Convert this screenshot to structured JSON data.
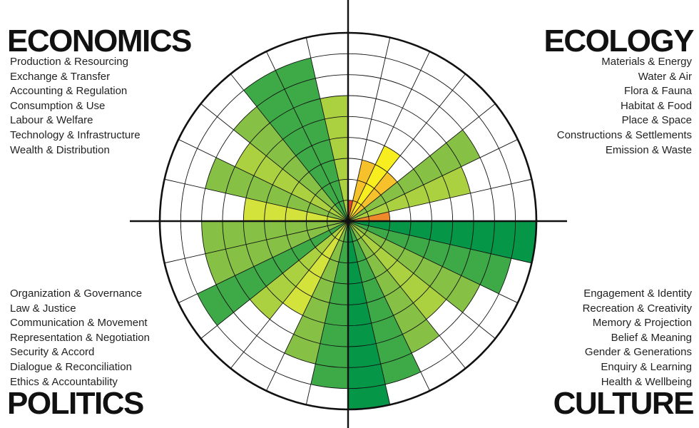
{
  "domains": {
    "economics": {
      "title": "ECONOMICS",
      "items": [
        "Production & Resourcing",
        "Exchange & Transfer",
        "Accounting & Regulation",
        "Consumption & Use",
        "Labour & Welfare",
        "Technology & Infrastructure",
        "Wealth & Distribution"
      ]
    },
    "ecology": {
      "title": "ECOLOGY",
      "items": [
        "Materials & Energy",
        "Water & Air",
        "Flora & Fauna",
        "Habitat & Food",
        "Place & Space",
        "Constructions & Settlements",
        "Emission & Waste"
      ]
    },
    "politics": {
      "title": "POLITICS",
      "items": [
        "Organization & Governance",
        "Law & Justice",
        "Communication & Movement",
        "Representation & Negotiation",
        "Security & Accord",
        "Dialogue & Reconciliation",
        "Ethics & Accountability"
      ]
    },
    "culture": {
      "title": "CULTURE",
      "items": [
        "Engagement & Identity",
        "Recreation & Creativity",
        "Memory & Projection",
        "Belief & Meaning",
        "Gender & Generations",
        "Enquiry & Learning",
        "Health & Wellbeing"
      ]
    }
  },
  "chart_data": {
    "type": "radial-bar",
    "scale_levels": 9,
    "colors": {
      "1": "#e24a2b",
      "2": "#ef8a2c",
      "3": "#f6c12a",
      "4": "#f8ed1f",
      "5": "#d4e23c",
      "6": "#acd140",
      "7": "#86c145",
      "8": "#3eaa47",
      "9": "#059647"
    },
    "segments": [
      {
        "domain": "Ecology",
        "subdomain": "Materials & Energy",
        "level": 1
      },
      {
        "domain": "Ecology",
        "subdomain": "Water & Air",
        "level": 3
      },
      {
        "domain": "Ecology",
        "subdomain": "Flora & Fauna",
        "level": 4
      },
      {
        "domain": "Ecology",
        "subdomain": "Habitat & Food",
        "level": 3
      },
      {
        "domain": "Ecology",
        "subdomain": "Place & Space",
        "level": 7
      },
      {
        "domain": "Ecology",
        "subdomain": "Constructions & Settlements",
        "level": 6
      },
      {
        "domain": "Ecology",
        "subdomain": "Emission & Waste",
        "level": 2
      },
      {
        "domain": "Culture",
        "subdomain": "Engagement & Identity",
        "level": 9
      },
      {
        "domain": "Culture",
        "subdomain": "Recreation & Creativity",
        "level": 8
      },
      {
        "domain": "Culture",
        "subdomain": "Memory & Projection",
        "level": 7
      },
      {
        "domain": "Culture",
        "subdomain": "Belief & Meaning",
        "level": 6
      },
      {
        "domain": "Culture",
        "subdomain": "Gender & Generations",
        "level": 7
      },
      {
        "domain": "Culture",
        "subdomain": "Enquiry & Learning",
        "level": 8
      },
      {
        "domain": "Culture",
        "subdomain": "Health & Wellbeing",
        "level": 9
      },
      {
        "domain": "Politics",
        "subdomain": "Ethics & Accountability",
        "level": 8
      },
      {
        "domain": "Politics",
        "subdomain": "Dialogue & Reconciliation",
        "level": 7
      },
      {
        "domain": "Politics",
        "subdomain": "Security & Accord",
        "level": 5
      },
      {
        "domain": "Politics",
        "subdomain": "Representation & Negotiation",
        "level": 6
      },
      {
        "domain": "Politics",
        "subdomain": "Communication & Movement",
        "level": 8
      },
      {
        "domain": "Politics",
        "subdomain": "Law & Justice",
        "level": 7
      },
      {
        "domain": "Politics",
        "subdomain": "Organization & Governance",
        "level": 7
      },
      {
        "domain": "Economics",
        "subdomain": "Wealth & Distribution",
        "level": 5
      },
      {
        "domain": "Economics",
        "subdomain": "Technology & Infrastructure",
        "level": 7
      },
      {
        "domain": "Economics",
        "subdomain": "Labour & Welfare",
        "level": 6
      },
      {
        "domain": "Economics",
        "subdomain": "Consumption & Use",
        "level": 7
      },
      {
        "domain": "Economics",
        "subdomain": "Accounting & Regulation",
        "level": 8
      },
      {
        "domain": "Economics",
        "subdomain": "Exchange & Transfer",
        "level": 8
      },
      {
        "domain": "Economics",
        "subdomain": "Production & Resourcing",
        "level": 6
      }
    ]
  }
}
